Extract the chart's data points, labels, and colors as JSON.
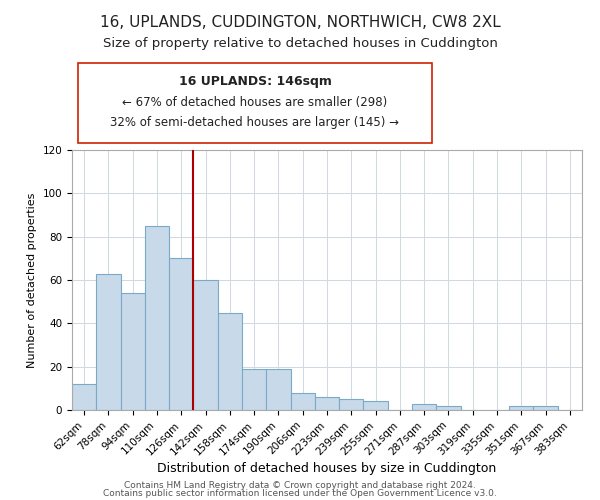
{
  "title": "16, UPLANDS, CUDDINGTON, NORTHWICH, CW8 2XL",
  "subtitle": "Size of property relative to detached houses in Cuddington",
  "xlabel": "Distribution of detached houses by size in Cuddington",
  "ylabel": "Number of detached properties",
  "bar_color": "#c8d9ea",
  "bar_edge_color": "#7aaac8",
  "bin_labels": [
    "62sqm",
    "78sqm",
    "94sqm",
    "110sqm",
    "126sqm",
    "142sqm",
    "158sqm",
    "174sqm",
    "190sqm",
    "206sqm",
    "223sqm",
    "239sqm",
    "255sqm",
    "271sqm",
    "287sqm",
    "303sqm",
    "319sqm",
    "335sqm",
    "351sqm",
    "367sqm",
    "383sqm"
  ],
  "bar_values": [
    12,
    63,
    54,
    85,
    70,
    60,
    45,
    19,
    19,
    8,
    6,
    5,
    4,
    0,
    3,
    2,
    0,
    0,
    2,
    2,
    0
  ],
  "vline_x": 4.5,
  "vline_color": "#aa0000",
  "ylim": [
    0,
    120
  ],
  "yticks": [
    0,
    20,
    40,
    60,
    80,
    100,
    120
  ],
  "annotation_title": "16 UPLANDS: 146sqm",
  "annotation_line1": "← 67% of detached houses are smaller (298)",
  "annotation_line2": "32% of semi-detached houses are larger (145) →",
  "footer_line1": "Contains HM Land Registry data © Crown copyright and database right 2024.",
  "footer_line2": "Contains public sector information licensed under the Open Government Licence v3.0.",
  "title_fontsize": 11,
  "subtitle_fontsize": 9.5,
  "xlabel_fontsize": 9,
  "ylabel_fontsize": 8,
  "tick_fontsize": 7.5,
  "footer_fontsize": 6.5
}
